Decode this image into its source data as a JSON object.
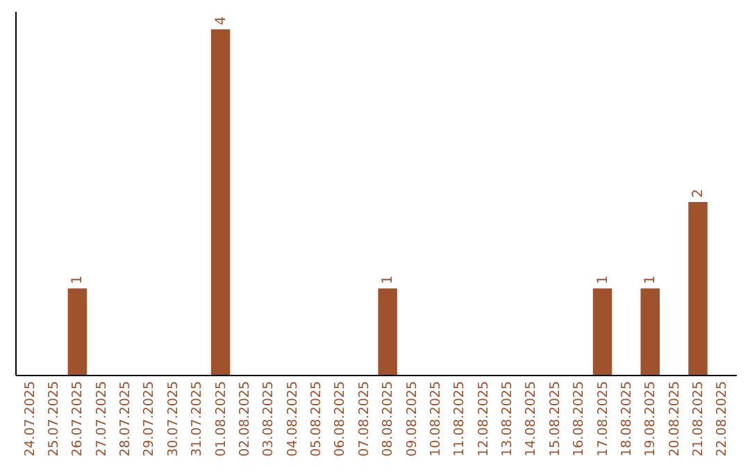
{
  "chart_data": {
    "type": "bar",
    "categories": [
      "24.07.2025",
      "25.07.2025",
      "26.07.2025",
      "27.07.2025",
      "28.07.2025",
      "29.07.2025",
      "30.07.2025",
      "31.07.2025",
      "01.08.2025",
      "02.08.2025",
      "03.08.2025",
      "04.08.2025",
      "05.08.2025",
      "06.08.2025",
      "07.08.2025",
      "08.08.2025",
      "09.08.2025",
      "10.08.2025",
      "11.08.2025",
      "12.08.2025",
      "13.08.2025",
      "14.08.2025",
      "15.08.2025",
      "16.08.2025",
      "17.08.2025",
      "18.08.2025",
      "19.08.2025",
      "20.08.2025",
      "21.08.2025",
      "22.08.2025"
    ],
    "values": [
      0,
      0,
      1,
      0,
      0,
      0,
      0,
      0,
      4,
      0,
      0,
      0,
      0,
      0,
      0,
      1,
      0,
      0,
      0,
      0,
      0,
      0,
      0,
      0,
      1,
      0,
      1,
      0,
      2,
      0
    ],
    "value_labels": [
      null,
      null,
      "1",
      null,
      null,
      null,
      null,
      null,
      "4",
      null,
      null,
      null,
      null,
      null,
      null,
      "1",
      null,
      null,
      null,
      null,
      null,
      null,
      null,
      null,
      "1",
      null,
      "1",
      null,
      "2",
      null
    ],
    "color": "#a0522d",
    "tick_labels": "x",
    "grid": false
  }
}
